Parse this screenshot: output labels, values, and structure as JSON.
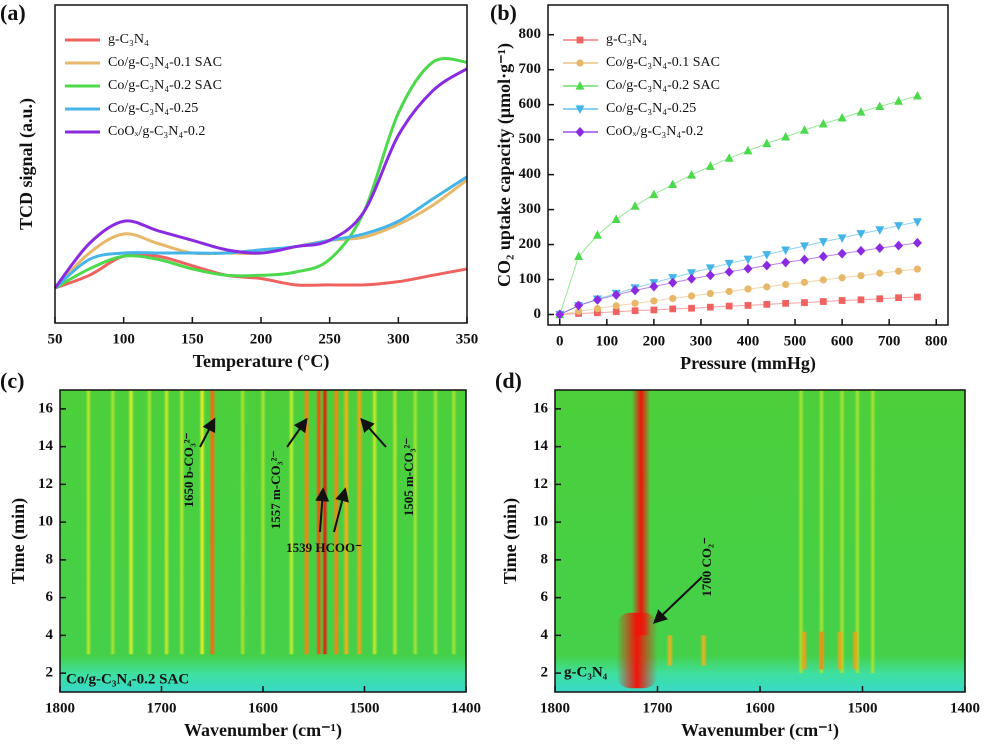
{
  "chart_data": [
    {
      "type": "line",
      "label": "(a)",
      "xlabel": "Temperature (°C)",
      "ylabel": "TCD signal (a.u.)",
      "x": [
        50,
        75,
        100,
        125,
        150,
        175,
        200,
        225,
        250,
        275,
        300,
        325,
        350
      ],
      "xlim": [
        50,
        350
      ],
      "xticks": [
        50,
        100,
        150,
        200,
        250,
        300,
        350
      ],
      "ylim": [
        0,
        100
      ],
      "legend": "upper left",
      "series": [
        {
          "name": "g-C₃N₄",
          "color": "#f0625f",
          "values": [
            11,
            15,
            21,
            21,
            18,
            15,
            14,
            12,
            12,
            12,
            13,
            15,
            17
          ]
        },
        {
          "name": "Co/g-C₃N₄-0.1 SAC",
          "color": "#e8b86a",
          "values": [
            11,
            22,
            28,
            25,
            22,
            22,
            22,
            24,
            26,
            27,
            31,
            37,
            45
          ]
        },
        {
          "name": "Co/g-C₃N₄-0.2 SAC",
          "color": "#4cd94c",
          "values": [
            11,
            17,
            21,
            20,
            17,
            15,
            15,
            16,
            20,
            35,
            66,
            82,
            82
          ]
        },
        {
          "name": "Co/g-C₃N₄-0.25",
          "color": "#45b4e8",
          "values": [
            11,
            20,
            22,
            22,
            22,
            22,
            23,
            24,
            26,
            28,
            32,
            39,
            46
          ]
        },
        {
          "name": "CoOₓ/g-C₃N₄-0.2",
          "color": "#8a2be2",
          "values": [
            11,
            25,
            32,
            29,
            26,
            23,
            22,
            24,
            26,
            35,
            59,
            73,
            80
          ]
        }
      ]
    },
    {
      "type": "scatter",
      "label": "(b)",
      "xlabel": "Pressure (mmHg)",
      "ylabel": "CO₂ uptake capacity (μmol·g⁻¹)",
      "x": [
        0,
        40,
        80,
        120,
        160,
        200,
        240,
        280,
        320,
        360,
        400,
        440,
        480,
        520,
        560,
        600,
        640,
        680,
        720,
        760
      ],
      "xlim": [
        -25,
        825
      ],
      "xticks": [
        0,
        100,
        200,
        300,
        400,
        500,
        600,
        700,
        800
      ],
      "ylim": [
        -30,
        885
      ],
      "yticks": [
        0,
        100,
        200,
        300,
        400,
        500,
        600,
        700,
        800
      ],
      "legend": "upper left",
      "series": [
        {
          "name": "g-C₃N₄",
          "color": "#f0625f",
          "marker": "square",
          "values": [
            0,
            3,
            5,
            8,
            11,
            13,
            16,
            18,
            21,
            24,
            26,
            29,
            32,
            34,
            37,
            40,
            42,
            45,
            48,
            50
          ]
        },
        {
          "name": "Co/g-C₃N₄-0.1 SAC",
          "color": "#e8b86a",
          "marker": "circle",
          "values": [
            0,
            9,
            17,
            25,
            32,
            39,
            46,
            53,
            60,
            66,
            73,
            79,
            86,
            92,
            99,
            105,
            111,
            118,
            124,
            130
          ]
        },
        {
          "name": "Co/g-C₃N₄-0.2 SAC",
          "color": "#4cd94c",
          "marker": "triangle-up",
          "values": [
            0,
            166,
            227,
            272,
            310,
            343,
            372,
            399,
            424,
            447,
            468,
            489,
            508,
            527,
            545,
            562,
            579,
            595,
            610,
            625
          ]
        },
        {
          "name": "Co/g-C₃N₄-0.25",
          "color": "#45b4e8",
          "marker": "triangle-down",
          "values": [
            0,
            25,
            44,
            60,
            76,
            91,
            105,
            119,
            133,
            146,
            158,
            171,
            184,
            196,
            208,
            219,
            231,
            242,
            254,
            265
          ]
        },
        {
          "name": "CoOₓ/g-C₃N₄-0.2",
          "color": "#8a2be2",
          "marker": "diamond",
          "values": [
            0,
            26,
            42,
            56,
            69,
            80,
            91,
            102,
            112,
            122,
            131,
            140,
            149,
            157,
            166,
            174,
            182,
            190,
            197,
            205
          ]
        }
      ]
    },
    {
      "type": "heatmap",
      "label": "(c)",
      "xlabel": "Wavenumber (cm⁻¹)",
      "ylabel": "Time (min)",
      "xlim": [
        1800,
        1400
      ],
      "xticks": [
        1800,
        1700,
        1600,
        1500,
        1400
      ],
      "ylim": [
        1,
        17
      ],
      "yticks": [
        2,
        4,
        6,
        8,
        10,
        12,
        14,
        16
      ],
      "sample": "Co/g-C₃N₄-0.2 SAC",
      "annotations": [
        "1650 b-CO₃²⁻",
        "1557 m-CO₃²⁻",
        "1539 HCOO⁻",
        "1505 m-CO₃²⁻"
      ],
      "peaks": [
        {
          "x": 1772,
          "width": 6,
          "t": [
            3,
            17
          ],
          "intensity": 0.35
        },
        {
          "x": 1748,
          "width": 6,
          "t": [
            3,
            17
          ],
          "intensity": 0.3
        },
        {
          "x": 1730,
          "width": 6,
          "t": [
            3,
            17
          ],
          "intensity": 0.45
        },
        {
          "x": 1712,
          "width": 6,
          "t": [
            3,
            17
          ],
          "intensity": 0.3
        },
        {
          "x": 1695,
          "width": 6,
          "t": [
            3,
            17
          ],
          "intensity": 0.4
        },
        {
          "x": 1680,
          "width": 6,
          "t": [
            3,
            17
          ],
          "intensity": 0.35
        },
        {
          "x": 1660,
          "width": 6,
          "t": [
            3,
            17
          ],
          "intensity": 0.5
        },
        {
          "x": 1650,
          "width": 7,
          "t": [
            3,
            17
          ],
          "intensity": 0.85
        },
        {
          "x": 1620,
          "width": 6,
          "t": [
            3,
            17
          ],
          "intensity": 0.3
        },
        {
          "x": 1600,
          "width": 6,
          "t": [
            3,
            17
          ],
          "intensity": 0.3
        },
        {
          "x": 1572,
          "width": 6,
          "t": [
            3,
            17
          ],
          "intensity": 0.4
        },
        {
          "x": 1557,
          "width": 7,
          "t": [
            3,
            17
          ],
          "intensity": 0.8
        },
        {
          "x": 1545,
          "width": 6,
          "t": [
            3,
            17
          ],
          "intensity": 0.9
        },
        {
          "x": 1539,
          "width": 6,
          "t": [
            3,
            17
          ],
          "intensity": 1
        },
        {
          "x": 1528,
          "width": 7,
          "t": [
            3,
            17
          ],
          "intensity": 0.8
        },
        {
          "x": 1518,
          "width": 7,
          "t": [
            3,
            17
          ],
          "intensity": 0.7
        },
        {
          "x": 1505,
          "width": 7,
          "t": [
            3,
            17
          ],
          "intensity": 0.75
        },
        {
          "x": 1490,
          "width": 6,
          "t": [
            3,
            17
          ],
          "intensity": 0.4
        },
        {
          "x": 1470,
          "width": 6,
          "t": [
            3,
            17
          ],
          "intensity": 0.35
        },
        {
          "x": 1450,
          "width": 6,
          "t": [
            3,
            17
          ],
          "intensity": 0.3
        },
        {
          "x": 1430,
          "width": 6,
          "t": [
            3,
            17
          ],
          "intensity": 0.3
        },
        {
          "x": 1412,
          "width": 6,
          "t": [
            3,
            17
          ],
          "intensity": 0.3
        }
      ]
    },
    {
      "type": "heatmap",
      "label": "(d)",
      "xlabel": "Wavenumber (cm⁻¹)",
      "ylabel": "Time (min)",
      "xlim": [
        1800,
        1400
      ],
      "xticks": [
        1800,
        1700,
        1600,
        1500,
        1400
      ],
      "ylim": [
        1,
        17
      ],
      "yticks": [
        2,
        4,
        6,
        8,
        10,
        12,
        14,
        16
      ],
      "sample": "g-C₃N₄",
      "annotations": [
        "1700 CO₂⁻"
      ],
      "peaks": [
        {
          "x": 1560,
          "width": 6,
          "t": [
            2,
            17
          ],
          "intensity": 0.3
        },
        {
          "x": 1540,
          "width": 6,
          "t": [
            2,
            17
          ],
          "intensity": 0.3
        },
        {
          "x": 1520,
          "width": 6,
          "t": [
            2,
            17
          ],
          "intensity": 0.3
        },
        {
          "x": 1505,
          "width": 6,
          "t": [
            2,
            17
          ],
          "intensity": 0.3
        },
        {
          "x": 1490,
          "width": 6,
          "t": [
            2,
            17
          ],
          "intensity": 0.3
        },
        {
          "x": 1716,
          "width": 18,
          "t": [
            4,
            17
          ],
          "intensity": 1
        },
        {
          "x": 1720,
          "width": 40,
          "t": [
            1.2,
            5.2
          ],
          "intensity": 1
        },
        {
          "x": 1688,
          "width": 7,
          "t": [
            2.4,
            4
          ],
          "intensity": 0.7
        },
        {
          "x": 1655,
          "width": 7,
          "t": [
            2.4,
            4
          ],
          "intensity": 0.7
        },
        {
          "x": 1557,
          "width": 7,
          "t": [
            2.2,
            4.2
          ],
          "intensity": 0.75
        },
        {
          "x": 1540,
          "width": 7,
          "t": [
            2.2,
            4.2
          ],
          "intensity": 0.8
        },
        {
          "x": 1522,
          "width": 7,
          "t": [
            2.2,
            4.2
          ],
          "intensity": 0.75
        },
        {
          "x": 1507,
          "width": 7,
          "t": [
            2.2,
            4.2
          ],
          "intensity": 0.75
        }
      ]
    }
  ]
}
